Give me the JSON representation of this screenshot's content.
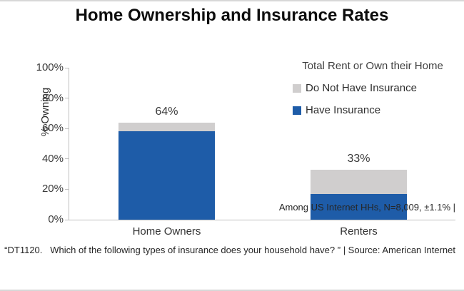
{
  "page": {
    "title": "Home Ownership and Insurance Rates"
  },
  "chart_data": {
    "type": "bar",
    "subtype": "stacked",
    "title": "Home Ownership and Insurance Rates",
    "xlabel": "",
    "ylabel": "% Owning",
    "categories": [
      "Home Owners",
      "Renters"
    ],
    "series": [
      {
        "name": "Have Insurance",
        "color": "#1E5CA8",
        "values": [
          58,
          17
        ]
      },
      {
        "name": "Do Not Have Insurance",
        "color": "#D0CECE",
        "values": [
          6,
          16
        ]
      }
    ],
    "totals": [
      64,
      33
    ],
    "total_labels": [
      "64%",
      "33%"
    ],
    "ylim": [
      0,
      100
    ],
    "yticks": [
      0,
      20,
      40,
      60,
      80,
      100
    ],
    "ytick_labels": [
      "0%",
      "20%",
      "40%",
      "60%",
      "80%",
      "100%"
    ],
    "grid": false,
    "legend_position": "top-right"
  },
  "legend": {
    "title": "Total Rent or Own their Home",
    "items": [
      {
        "label": "Do Not Have Insurance",
        "color": "#D0CECE"
      },
      {
        "label": "Have Insurance",
        "color": "#1E5CA8"
      }
    ]
  },
  "footnote": {
    "line1": "Among US Internet HHs, N=8,009, ±1.1% |",
    "line2": "“DT1120.   Which of the following types of insurance does your household have? ” | Source: American Internet"
  },
  "colors": {
    "have_insurance": "#1E5CA8",
    "no_insurance": "#D0CECE",
    "axis_line": "#BFBFBF",
    "text": "#333333"
  }
}
